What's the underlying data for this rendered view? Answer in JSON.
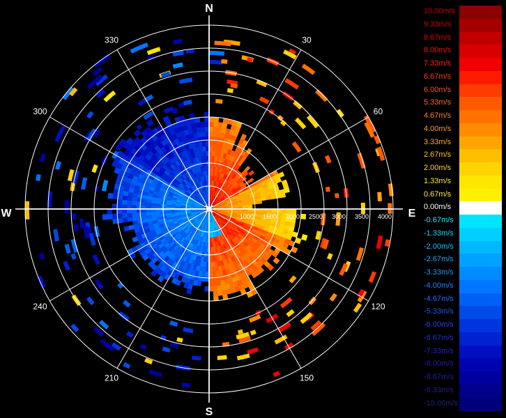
{
  "compass": {
    "north": "N",
    "east": "E",
    "south": "S",
    "west": "W"
  },
  "angle_labels": [
    {
      "deg": 30,
      "text": "30"
    },
    {
      "deg": 60,
      "text": "60"
    },
    {
      "deg": 120,
      "text": "120"
    },
    {
      "deg": 150,
      "text": "150"
    },
    {
      "deg": 210,
      "text": "210"
    },
    {
      "deg": 240,
      "text": "240"
    },
    {
      "deg": 300,
      "text": "300"
    },
    {
      "deg": 330,
      "text": "330"
    }
  ],
  "range_labels": [
    "1000",
    "1500",
    "2000",
    "2500",
    "3000",
    "3500",
    "4000"
  ],
  "legend": [
    {
      "label": "10.00m/s",
      "color": "#8b0000",
      "text_color": "#c00000"
    },
    {
      "label": "9.33m/s",
      "color": "#a50000",
      "text_color": "#d00000"
    },
    {
      "label": "8.67m/s",
      "color": "#c00000",
      "text_color": "#e00000"
    },
    {
      "label": "8.00m/s",
      "color": "#d80000",
      "text_color": "#ee1010"
    },
    {
      "label": "7.33m/s",
      "color": "#f00000",
      "text_color": "#ff2020"
    },
    {
      "label": "6.67m/s",
      "color": "#ff1a00",
      "text_color": "#ff3a10"
    },
    {
      "label": "6.00m/s",
      "color": "#ff3c00",
      "text_color": "#ff5020"
    },
    {
      "label": "5.33m/s",
      "color": "#ff5a00",
      "text_color": "#ff6a20"
    },
    {
      "label": "4.67m/s",
      "color": "#ff7200",
      "text_color": "#ff8020"
    },
    {
      "label": "4.00m/s",
      "color": "#ff8c00",
      "text_color": "#ff9620"
    },
    {
      "label": "3.33m/s",
      "color": "#ffa500",
      "text_color": "#ffae20"
    },
    {
      "label": "2.67m/s",
      "color": "#ffbe00",
      "text_color": "#ffc420"
    },
    {
      "label": "2.00m/s",
      "color": "#ffd400",
      "text_color": "#ffd820"
    },
    {
      "label": "1.33m/s",
      "color": "#ffe600",
      "text_color": "#ffe820"
    },
    {
      "label": "0.67m/s",
      "color": "#fff000",
      "text_color": "#fff040"
    },
    {
      "label": "0.00m/s",
      "color": "#ffffff",
      "text_color": "#ffffff"
    },
    {
      "label": "-0.67m/s",
      "color": "#00e5ff",
      "text_color": "#20e8ff"
    },
    {
      "label": "-1.33m/s",
      "color": "#00cfff",
      "text_color": "#20d4ff"
    },
    {
      "label": "-2.00m/s",
      "color": "#00b8ff",
      "text_color": "#20c0ff"
    },
    {
      "label": "-2.67m/s",
      "color": "#00a2ff",
      "text_color": "#20a8ff"
    },
    {
      "label": "-3.33m/s",
      "color": "#008cff",
      "text_color": "#2094ff"
    },
    {
      "label": "-4.00m/s",
      "color": "#0076ff",
      "text_color": "#2080ff"
    },
    {
      "label": "-4.67m/s",
      "color": "#0060f5",
      "text_color": "#206cff"
    },
    {
      "label": "-5.33m/s",
      "color": "#004ae8",
      "text_color": "#2058f0"
    },
    {
      "label": "-6.00m/s",
      "color": "#0034dc",
      "text_color": "#2044e0"
    },
    {
      "label": "-6.67m/s",
      "color": "#0022cf",
      "text_color": "#2034d0"
    },
    {
      "label": "-7.33m/s",
      "color": "#0010c0",
      "text_color": "#2028c0"
    },
    {
      "label": "-8.00m/s",
      "color": "#0004b0",
      "text_color": "#2020b0"
    },
    {
      "label": "-8.67m/s",
      "color": "#00009e",
      "text_color": "#20209e"
    },
    {
      "label": "-9.33m/s",
      "color": "#00008c",
      "text_color": "#20208c"
    },
    {
      "label": "-10.00m/s",
      "color": "#00007a",
      "text_color": "#20207a"
    }
  ]
}
